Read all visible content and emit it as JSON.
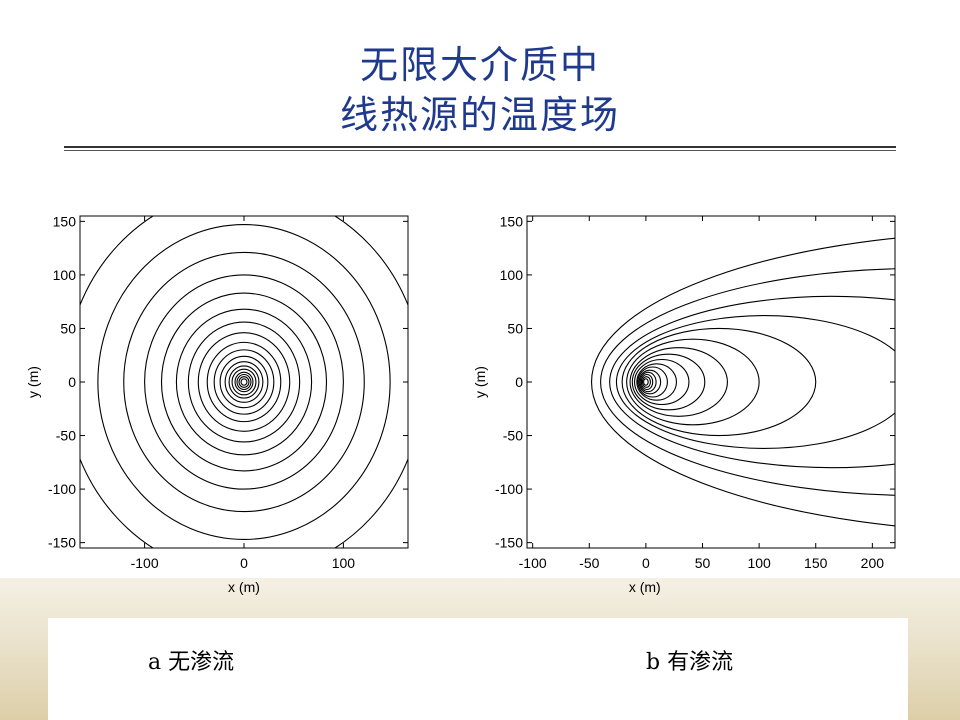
{
  "slide": {
    "title_line1": "无限大介质中",
    "title_line2": "线热源的温度场"
  },
  "captions": {
    "a": "a 无渗流",
    "b": "b 有渗流"
  },
  "colors": {
    "title": "#1f3a8c",
    "contour": "#000000"
  },
  "chart_data": [
    {
      "type": "contour",
      "xlabel": "x  (m)",
      "ylabel": "y  (m)",
      "xlim": [
        -165,
        165
      ],
      "ylim": [
        -155,
        155
      ],
      "xticks": [
        -100,
        0,
        100
      ],
      "yticks": [
        150,
        100,
        50,
        0,
        -50,
        -100,
        -150
      ],
      "source": [
        0,
        0
      ],
      "contour_radii": [
        3,
        5,
        7,
        9,
        12,
        15,
        19,
        24,
        30,
        37,
        46,
        56,
        68,
        83,
        100,
        121,
        147,
        180
      ]
    },
    {
      "type": "contour",
      "xlabel": "x  (m)",
      "ylabel": "y  (m)",
      "xlim": [
        -105,
        220
      ],
      "ylim": [
        -155,
        155
      ],
      "xticks": [
        -100,
        -50,
        0,
        50,
        100,
        150,
        200
      ],
      "yticks": [
        150,
        100,
        50,
        0,
        -50,
        -100,
        -150
      ],
      "source": [
        0,
        0
      ],
      "contour_levels": [
        {
          "x_left": -2,
          "x_right": 2,
          "y_half": 3
        },
        {
          "x_left": -3,
          "x_right": 4,
          "y_half": 5
        },
        {
          "x_left": -4,
          "x_right": 6,
          "y_half": 7
        },
        {
          "x_left": -5,
          "x_right": 9,
          "y_half": 9
        },
        {
          "x_left": -6,
          "x_right": 13,
          "y_half": 11
        },
        {
          "x_left": -7,
          "x_right": 19,
          "y_half": 14
        },
        {
          "x_left": -8,
          "x_right": 27,
          "y_half": 17
        },
        {
          "x_left": -10,
          "x_right": 38,
          "y_half": 21
        },
        {
          "x_left": -12,
          "x_right": 52,
          "y_half": 26
        },
        {
          "x_left": -14,
          "x_right": 72,
          "y_half": 32
        },
        {
          "x_left": -17,
          "x_right": 100,
          "y_half": 40
        },
        {
          "x_left": -21,
          "x_right": 150,
          "y_half": 50
        },
        {
          "x_left": -26,
          "x_right": 235,
          "y_half": 62
        },
        {
          "x_left": -32,
          "x_right": 360,
          "y_half": 80
        },
        {
          "x_left": -40,
          "x_right": 520,
          "y_half": 106
        },
        {
          "x_left": -48,
          "x_right": 700,
          "y_half": 140
        }
      ]
    }
  ]
}
